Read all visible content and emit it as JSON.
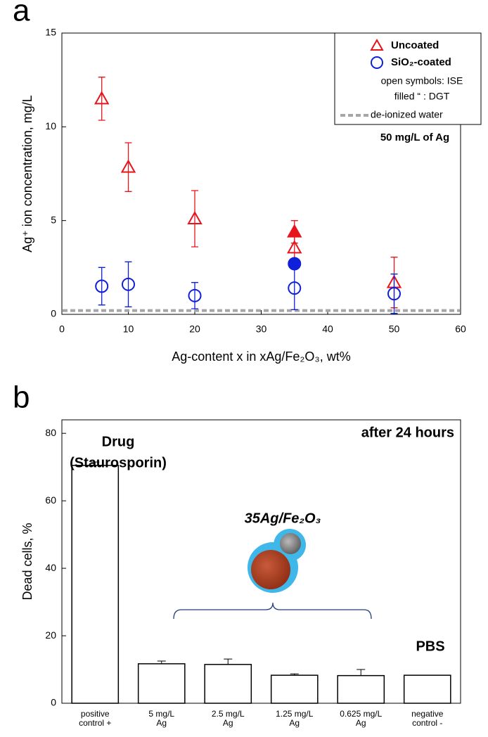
{
  "chart_data": [
    {
      "type": "scatter",
      "panel": "a",
      "xlabel": "Ag-content x in xAg/Fe₂O₃, wt%",
      "ylabel": "Ag⁺ ion concentration, mg/L",
      "xlim": [
        0,
        60
      ],
      "xticks": [
        0,
        10,
        20,
        30,
        40,
        50,
        60
      ],
      "ylim": [
        0,
        15
      ],
      "yticks": [
        0,
        5,
        10,
        15
      ],
      "series": [
        {
          "name": "Uncoated",
          "color": "#e8141b",
          "marker": "triangle",
          "x": [
            6,
            10,
            20,
            35,
            50
          ],
          "values": [
            11.5,
            7.85,
            5.1,
            3.55,
            1.7
          ],
          "errors": [
            1.15,
            1.3,
            1.5,
            0.6,
            1.35
          ],
          "dgt": {
            "x": [
              35
            ],
            "values": [
              4.4
            ],
            "errors": [
              0.6
            ]
          }
        },
        {
          "name": "SiO₂-coated",
          "color": "#1020d8",
          "marker": "circle",
          "x": [
            6,
            10,
            20,
            35,
            50
          ],
          "values": [
            1.5,
            1.6,
            1.0,
            1.4,
            1.1
          ],
          "errors": [
            1.0,
            1.2,
            0.7,
            1.15,
            1.05
          ],
          "dgt": {
            "x": [
              35
            ],
            "values": [
              2.7
            ],
            "errors": [
              0
            ]
          }
        }
      ],
      "reference": {
        "name": "de-ionized water",
        "value": 0.2,
        "color": "#a6a6a6"
      },
      "legend_notes": [
        "open symbols: ISE",
        "filled  “  : DGT"
      ],
      "annotation": "50 mg/L of Ag"
    },
    {
      "type": "bar",
      "panel": "b",
      "ylabel": "Dead cells, %",
      "categories": [
        [
          "positive",
          "control +"
        ],
        [
          "5 mg/L",
          "Ag"
        ],
        [
          "2.5 mg/L",
          "Ag"
        ],
        [
          "1.25 mg/L",
          "Ag"
        ],
        [
          "0.625 mg/L",
          "Ag"
        ],
        [
          "negative",
          "control -"
        ]
      ],
      "values": [
        70.5,
        11.7,
        11.5,
        8.3,
        8.2,
        8.3
      ],
      "errors": [
        1.0,
        0.8,
        1.6,
        0.4,
        1.8,
        0
      ],
      "color": "#ffffff",
      "ylim": [
        0,
        84
      ],
      "yticks": [
        0,
        20,
        40,
        60,
        80
      ],
      "annotations": [
        "Drug",
        "(Staurosporin)",
        "35Ag/Fe₂O₃",
        "PBS",
        "after 24 hours"
      ]
    }
  ]
}
